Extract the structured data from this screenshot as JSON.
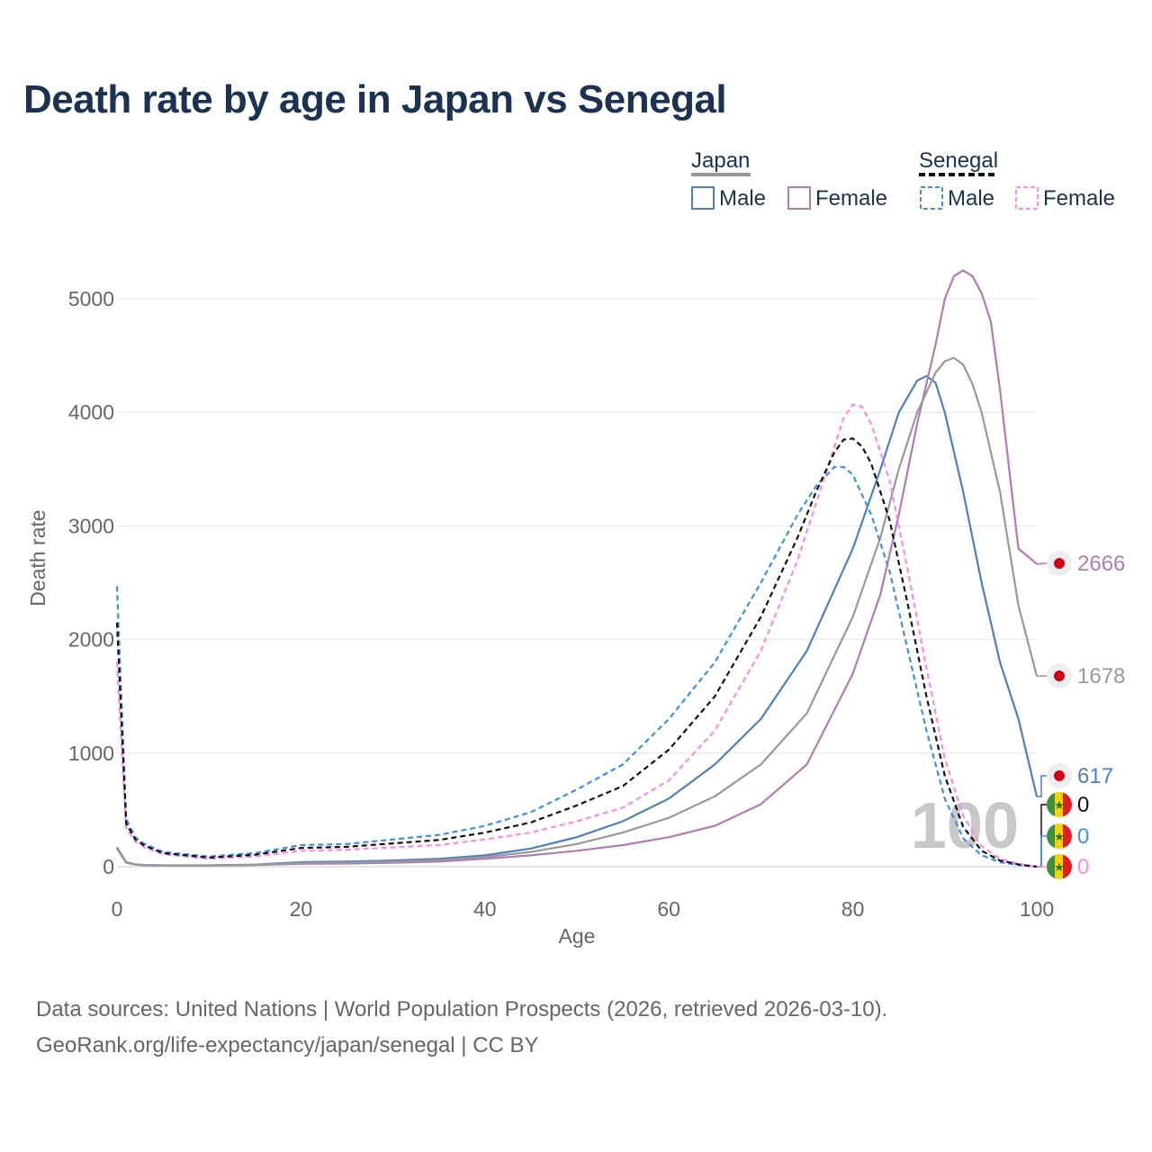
{
  "title": "Death rate by age in Japan vs Senegal",
  "source_line1": "Data sources: United Nations | World Population Prospects (2026, retrieved 2026-03-10).",
  "source_line2": "GeoRank.org/life-expectancy/japan/senegal | CC BY",
  "legend": {
    "group1": "Japan",
    "group2": "Senegal",
    "male": "Male",
    "female": "Female"
  },
  "colors": {
    "japan_male": "#4f7fc0",
    "japan_female": "#b37ab8",
    "japan_total": "#999999",
    "senegal_male": "#3d8fe8",
    "senegal_female": "#ff88ee",
    "senegal_total": "#111111",
    "title": "#1b3350"
  },
  "year_label": "100",
  "chart_data": {
    "type": "line",
    "xlabel": "Age",
    "ylabel": "Death rate",
    "xlim": [
      0,
      100
    ],
    "ylim": [
      0,
      5000
    ],
    "x_ticks": [
      0,
      20,
      40,
      60,
      80,
      100
    ],
    "y_ticks": [
      0,
      1000,
      2000,
      3000,
      4000,
      5000
    ],
    "grid": true,
    "legend_position": "top-right",
    "series": [
      {
        "key": "japan_male",
        "name": "Japan Male",
        "country": "Japan",
        "dashed": false,
        "end_label": "617",
        "x": [
          0,
          1,
          2,
          3,
          5,
          10,
          15,
          20,
          25,
          30,
          35,
          40,
          45,
          50,
          55,
          60,
          65,
          70,
          75,
          80,
          83,
          85,
          87,
          88,
          89,
          90,
          92,
          94,
          96,
          98,
          100
        ],
        "y": [
          170,
          40,
          20,
          15,
          12,
          12,
          18,
          40,
          45,
          55,
          70,
          100,
          160,
          260,
          400,
          600,
          900,
          1300,
          1900,
          2800,
          3500,
          4000,
          4280,
          4320,
          4260,
          4000,
          3300,
          2500,
          1800,
          1300,
          617
        ]
      },
      {
        "key": "japan_female",
        "name": "Japan Female",
        "country": "Japan",
        "dashed": false,
        "end_label": "2666",
        "x": [
          0,
          1,
          2,
          3,
          5,
          10,
          15,
          20,
          25,
          30,
          35,
          40,
          45,
          50,
          55,
          60,
          65,
          70,
          75,
          80,
          83,
          85,
          87,
          89,
          90,
          91,
          92,
          93,
          94,
          95,
          96,
          97,
          98,
          100
        ],
        "y": [
          160,
          35,
          18,
          12,
          10,
          10,
          14,
          25,
          28,
          35,
          45,
          70,
          100,
          140,
          190,
          260,
          360,
          550,
          900,
          1700,
          2400,
          3100,
          3900,
          4600,
          5000,
          5200,
          5250,
          5200,
          5050,
          4800,
          4200,
          3500,
          2800,
          2666
        ],
        "y_note": "values approximated from curve"
      },
      {
        "key": "japan_total",
        "name": "Japan",
        "country": "Japan",
        "dashed": false,
        "end_label": "1678",
        "x": [
          0,
          1,
          2,
          3,
          5,
          10,
          15,
          20,
          25,
          30,
          35,
          40,
          45,
          50,
          55,
          60,
          65,
          70,
          75,
          80,
          83,
          85,
          87,
          89,
          90,
          91,
          92,
          93,
          94,
          96,
          98,
          100
        ],
        "y": [
          165,
          38,
          19,
          13,
          11,
          11,
          16,
          32,
          36,
          45,
          58,
          85,
          130,
          200,
          300,
          430,
          620,
          900,
          1350,
          2200,
          2900,
          3500,
          4000,
          4350,
          4450,
          4480,
          4420,
          4250,
          4000,
          3300,
          2300,
          1678
        ]
      },
      {
        "key": "senegal_male",
        "name": "Senegal Male",
        "country": "Senegal",
        "dashed": true,
        "end_label": "0",
        "x": [
          0,
          1,
          2,
          3,
          5,
          10,
          15,
          20,
          25,
          30,
          35,
          40,
          45,
          50,
          55,
          60,
          65,
          70,
          74,
          76,
          78,
          79,
          80,
          82,
          84,
          86,
          88,
          90,
          92,
          94,
          96,
          98,
          100
        ],
        "y": [
          2470,
          420,
          260,
          200,
          130,
          90,
          120,
          190,
          200,
          240,
          280,
          360,
          480,
          680,
          900,
          1300,
          1800,
          2500,
          3100,
          3350,
          3520,
          3520,
          3450,
          3100,
          2600,
          1900,
          1200,
          600,
          250,
          100,
          40,
          15,
          0
        ]
      },
      {
        "key": "senegal_female",
        "name": "Senegal Female",
        "country": "Senegal",
        "dashed": true,
        "end_label": "0",
        "x": [
          0,
          1,
          2,
          3,
          5,
          10,
          15,
          20,
          25,
          30,
          35,
          40,
          45,
          50,
          55,
          60,
          65,
          70,
          74,
          76,
          78,
          79,
          80,
          81,
          82,
          84,
          86,
          88,
          90,
          92,
          94,
          96,
          98,
          100
        ],
        "y": [
          1800,
          340,
          220,
          170,
          110,
          70,
          90,
          140,
          150,
          170,
          190,
          240,
          300,
          400,
          520,
          760,
          1200,
          1900,
          2700,
          3200,
          3700,
          3950,
          4070,
          4050,
          3900,
          3400,
          2600,
          1750,
          950,
          450,
          180,
          70,
          25,
          0
        ]
      },
      {
        "key": "senegal_total",
        "name": "Senegal",
        "country": "Senegal",
        "dashed": true,
        "end_label": "0",
        "x": [
          0,
          1,
          2,
          3,
          5,
          10,
          15,
          20,
          25,
          30,
          35,
          40,
          45,
          50,
          55,
          60,
          65,
          70,
          74,
          76,
          78,
          79,
          80,
          81,
          82,
          84,
          86,
          88,
          90,
          92,
          94,
          96,
          98,
          100
        ],
        "y": [
          2150,
          380,
          240,
          185,
          120,
          80,
          105,
          165,
          175,
          205,
          235,
          300,
          390,
          540,
          710,
          1030,
          1500,
          2200,
          2900,
          3300,
          3650,
          3760,
          3770,
          3700,
          3550,
          3050,
          2300,
          1500,
          800,
          350,
          140,
          55,
          20,
          0
        ]
      }
    ]
  }
}
